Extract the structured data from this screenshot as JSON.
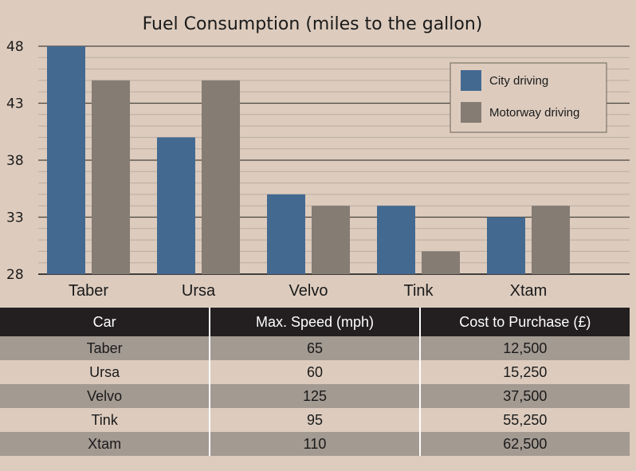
{
  "chart_data": {
    "type": "bar",
    "title": "Fuel Consumption (miles to the gallon)",
    "categories": [
      "Taber",
      "Ursa",
      "Velvo",
      "Tink",
      "Xtam"
    ],
    "series": [
      {
        "name": "City driving",
        "color": "#436991",
        "values": [
          48,
          40,
          35,
          34,
          33
        ]
      },
      {
        "name": "Motorway driving",
        "color": "#857c74",
        "values": [
          45,
          45,
          34,
          30,
          34
        ]
      }
    ],
    "yticks": [
      28,
      33,
      38,
      43,
      48
    ],
    "ylim": [
      28,
      48
    ],
    "grid": true,
    "legend_position": "top-right"
  },
  "table": {
    "headers": [
      "Car",
      "Max. Speed (mph)",
      "Cost to Purchase (£)"
    ],
    "rows": [
      [
        "Taber",
        "65",
        "12,500"
      ],
      [
        "Ursa",
        "60",
        "15,250"
      ],
      [
        "Velvo",
        "125",
        "37,500"
      ],
      [
        "Tink",
        "95",
        "55,250"
      ],
      [
        "Xtam",
        "110",
        "62,500"
      ]
    ]
  }
}
